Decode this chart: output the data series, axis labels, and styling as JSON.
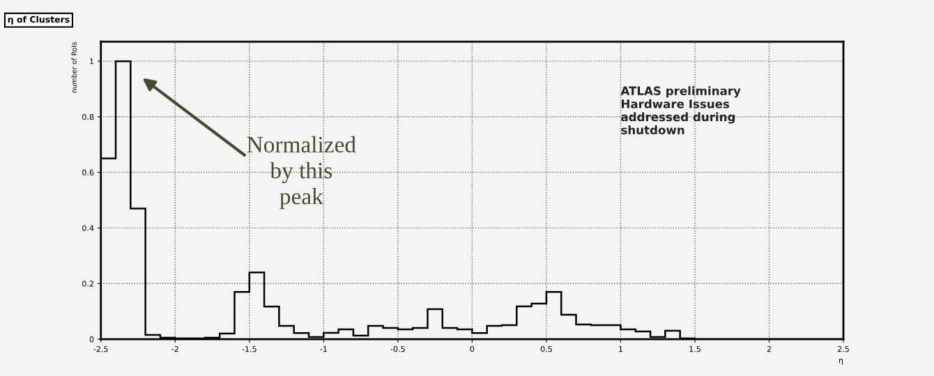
{
  "chart_data": {
    "type": "histogram",
    "title": "η of Clusters",
    "ylabel": "number of RoIs",
    "xlabel": "η",
    "bins": [
      -2.5,
      -2.4,
      -2.3,
      -2.2,
      -2.1,
      -2.0,
      -1.9,
      -1.8,
      -1.7,
      -1.6,
      -1.5,
      -1.4,
      -1.3,
      -1.2,
      -1.1,
      -1.0,
      -0.9,
      -0.8,
      -0.7,
      -0.6,
      -0.5,
      -0.4,
      -0.3,
      -0.2,
      -0.1,
      0.0,
      0.1,
      0.2,
      0.3,
      0.4,
      0.5,
      0.6,
      0.7,
      0.8,
      0.9,
      1.0,
      1.1,
      1.2,
      1.3,
      1.4,
      1.5,
      1.6,
      1.7,
      1.8,
      1.9,
      2.0,
      2.1,
      2.2,
      2.3,
      2.4,
      2.5
    ],
    "values": [
      0.65,
      1.0,
      0.47,
      0.015,
      0.005,
      0.003,
      0.003,
      0.005,
      0.02,
      0.17,
      0.24,
      0.117,
      0.048,
      0.022,
      0.008,
      0.023,
      0.035,
      0.013,
      0.048,
      0.04,
      0.035,
      0.04,
      0.108,
      0.04,
      0.035,
      0.022,
      0.048,
      0.05,
      0.118,
      0.128,
      0.17,
      0.088,
      0.053,
      0.05,
      0.05,
      0.035,
      0.028,
      0.008,
      0.03,
      0.003,
      0,
      0,
      0,
      0,
      0,
      0,
      0,
      0,
      0,
      0
    ],
    "color": "#000000",
    "xlim": [
      -2.5,
      2.5
    ],
    "ylim": [
      0,
      1.07
    ],
    "xticks": [
      -2.5,
      -2,
      -1.5,
      -1,
      -0.5,
      0,
      0.5,
      1,
      1.5,
      2,
      2.5
    ],
    "yticks": [
      0,
      0.2,
      0.4,
      0.6,
      0.8,
      1
    ],
    "grid": true,
    "line_style": "dotted",
    "annotations": [
      "Normalized\nby this\npeak",
      "ATLAS preliminary\nHardware Issues\naddressed during\nshutdown"
    ]
  }
}
